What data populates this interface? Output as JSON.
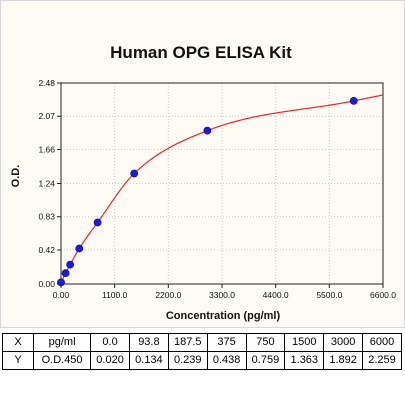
{
  "chart_data": {
    "type": "scatter",
    "title": "Human OPG ELISA Kit",
    "xlabel": "Concentration (pg/ml)",
    "ylabel": "O.D.",
    "xlim": [
      0,
      6600
    ],
    "ylim": [
      0,
      2.48
    ],
    "xticks": [
      "0.00",
      "1100.0",
      "2200.0",
      "3300.0",
      "4400.0",
      "5500.0",
      "6600.0"
    ],
    "yticks": [
      "0.00",
      "0.42",
      "0.83",
      "1.24",
      "1.66",
      "2.07",
      "2.48"
    ],
    "points": [
      {
        "x": 0.0,
        "y": 0.02
      },
      {
        "x": 93.8,
        "y": 0.134
      },
      {
        "x": 187.5,
        "y": 0.239
      },
      {
        "x": 375,
        "y": 0.438
      },
      {
        "x": 750,
        "y": 0.759
      },
      {
        "x": 1500,
        "y": 1.363
      },
      {
        "x": 3000,
        "y": 1.892
      },
      {
        "x": 6000,
        "y": 2.259
      }
    ],
    "grid": true,
    "colors": {
      "curve": "#e8242c",
      "point": "#1c1cdc",
      "frame": "#fdfbf3"
    }
  },
  "table": {
    "rows": [
      {
        "label": "X",
        "unit": "pg/ml",
        "values": [
          "0.0",
          "93.8",
          "187.5",
          "375",
          "750",
          "1500",
          "3000",
          "6000"
        ]
      },
      {
        "label": "Y",
        "unit": "O.D.450",
        "values": [
          "0.020",
          "0.134",
          "0.239",
          "0.438",
          "0.759",
          "1.363",
          "1.892",
          "2.259"
        ]
      }
    ]
  }
}
